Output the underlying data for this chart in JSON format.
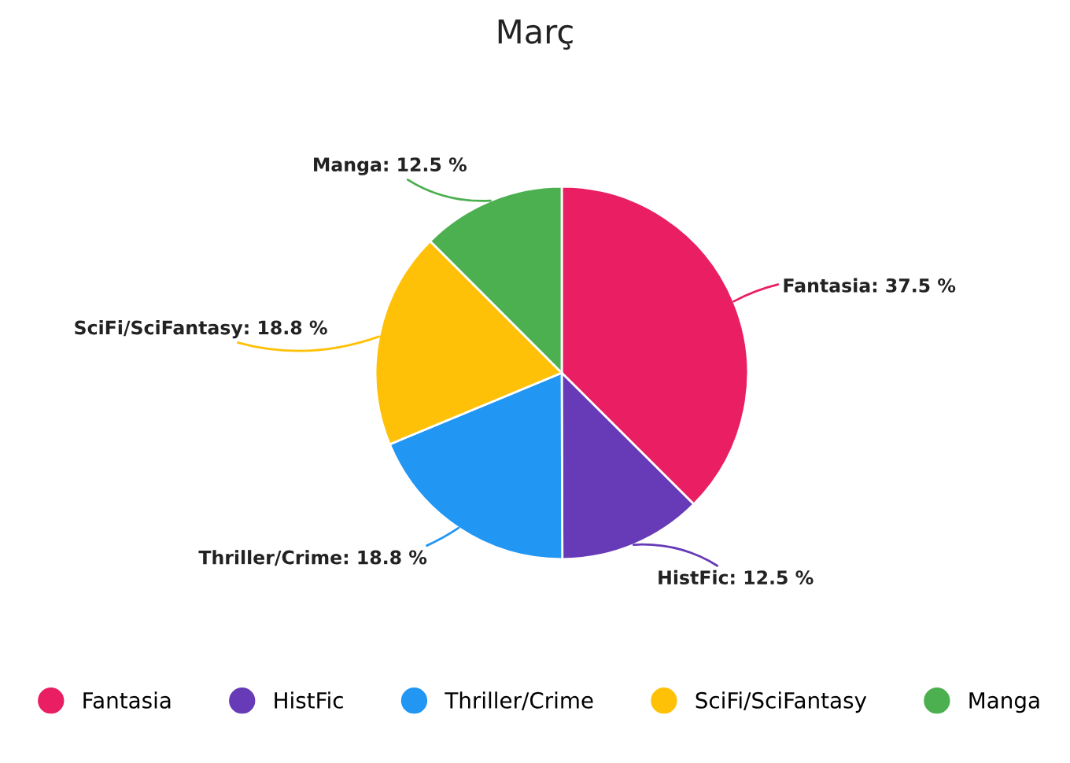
{
  "chart_data": {
    "type": "pie",
    "title": "Març",
    "categories": [
      "Fantasia",
      "HistFic",
      "Thriller/Crime",
      "SciFi/SciFantasy",
      "Manga"
    ],
    "values": [
      37.5,
      12.5,
      18.8,
      18.8,
      12.5
    ],
    "colors": [
      "#e91e63",
      "#673ab7",
      "#2196f3",
      "#ffc107",
      "#4caf50"
    ],
    "value_labels": [
      "Fantasia: 37.5 %",
      "HistFic: 12.5 %",
      "Thriller/Crime: 18.8 %",
      "SciFi/SciFantasy: 18.8 %",
      "Manga: 12.5 %"
    ],
    "legend": "bottom"
  }
}
